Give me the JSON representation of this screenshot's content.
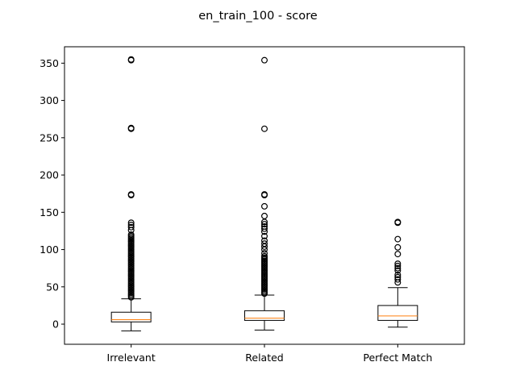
{
  "chart_data": {
    "type": "box",
    "title": "en_train_100 - score",
    "xlabel": "",
    "ylabel": "",
    "ylim": [
      -27,
      372
    ],
    "yticks": [
      0,
      50,
      100,
      150,
      200,
      250,
      300,
      350
    ],
    "ytick_labels": [
      "0",
      "50",
      "100",
      "150",
      "200",
      "250",
      "300",
      "350"
    ],
    "grid": false,
    "median_color": "#ff7f0e",
    "categories": [
      "Irrelevant",
      "Related",
      "Perfect Match"
    ],
    "boxes": [
      {
        "category": "Irrelevant",
        "whisker_low": -9,
        "q1": 3,
        "median": 6,
        "q3": 16,
        "whisker_high": 34,
        "outliers": [
          36,
          38,
          40,
          42,
          44,
          46,
          48,
          50,
          52,
          54,
          56,
          58,
          60,
          62,
          64,
          66,
          68,
          70,
          72,
          74,
          76,
          78,
          80,
          82,
          84,
          86,
          88,
          90,
          92,
          94,
          96,
          98,
          100,
          102,
          104,
          106,
          108,
          110,
          112,
          114,
          116,
          118,
          120,
          126,
          130,
          133,
          136,
          173,
          174,
          262,
          263,
          354,
          355
        ]
      },
      {
        "category": "Related",
        "whisker_low": -8,
        "q1": 5,
        "median": 8,
        "q3": 18,
        "whisker_high": 39,
        "outliers": [
          41,
          43,
          45,
          47,
          49,
          51,
          53,
          55,
          57,
          59,
          61,
          63,
          65,
          67,
          69,
          71,
          73,
          75,
          77,
          79,
          81,
          83,
          85,
          87,
          89,
          91,
          95,
          100,
          104,
          108,
          112,
          118,
          124,
          128,
          131,
          134,
          137,
          145,
          158,
          173,
          174,
          262,
          354
        ]
      },
      {
        "category": "Perfect Match",
        "whisker_low": -4,
        "q1": 5,
        "median": 11,
        "q3": 25,
        "whisker_high": 49,
        "outliers": [
          56,
          60,
          63,
          66,
          72,
          75,
          78,
          81,
          94,
          103,
          114,
          136,
          137
        ]
      }
    ]
  }
}
